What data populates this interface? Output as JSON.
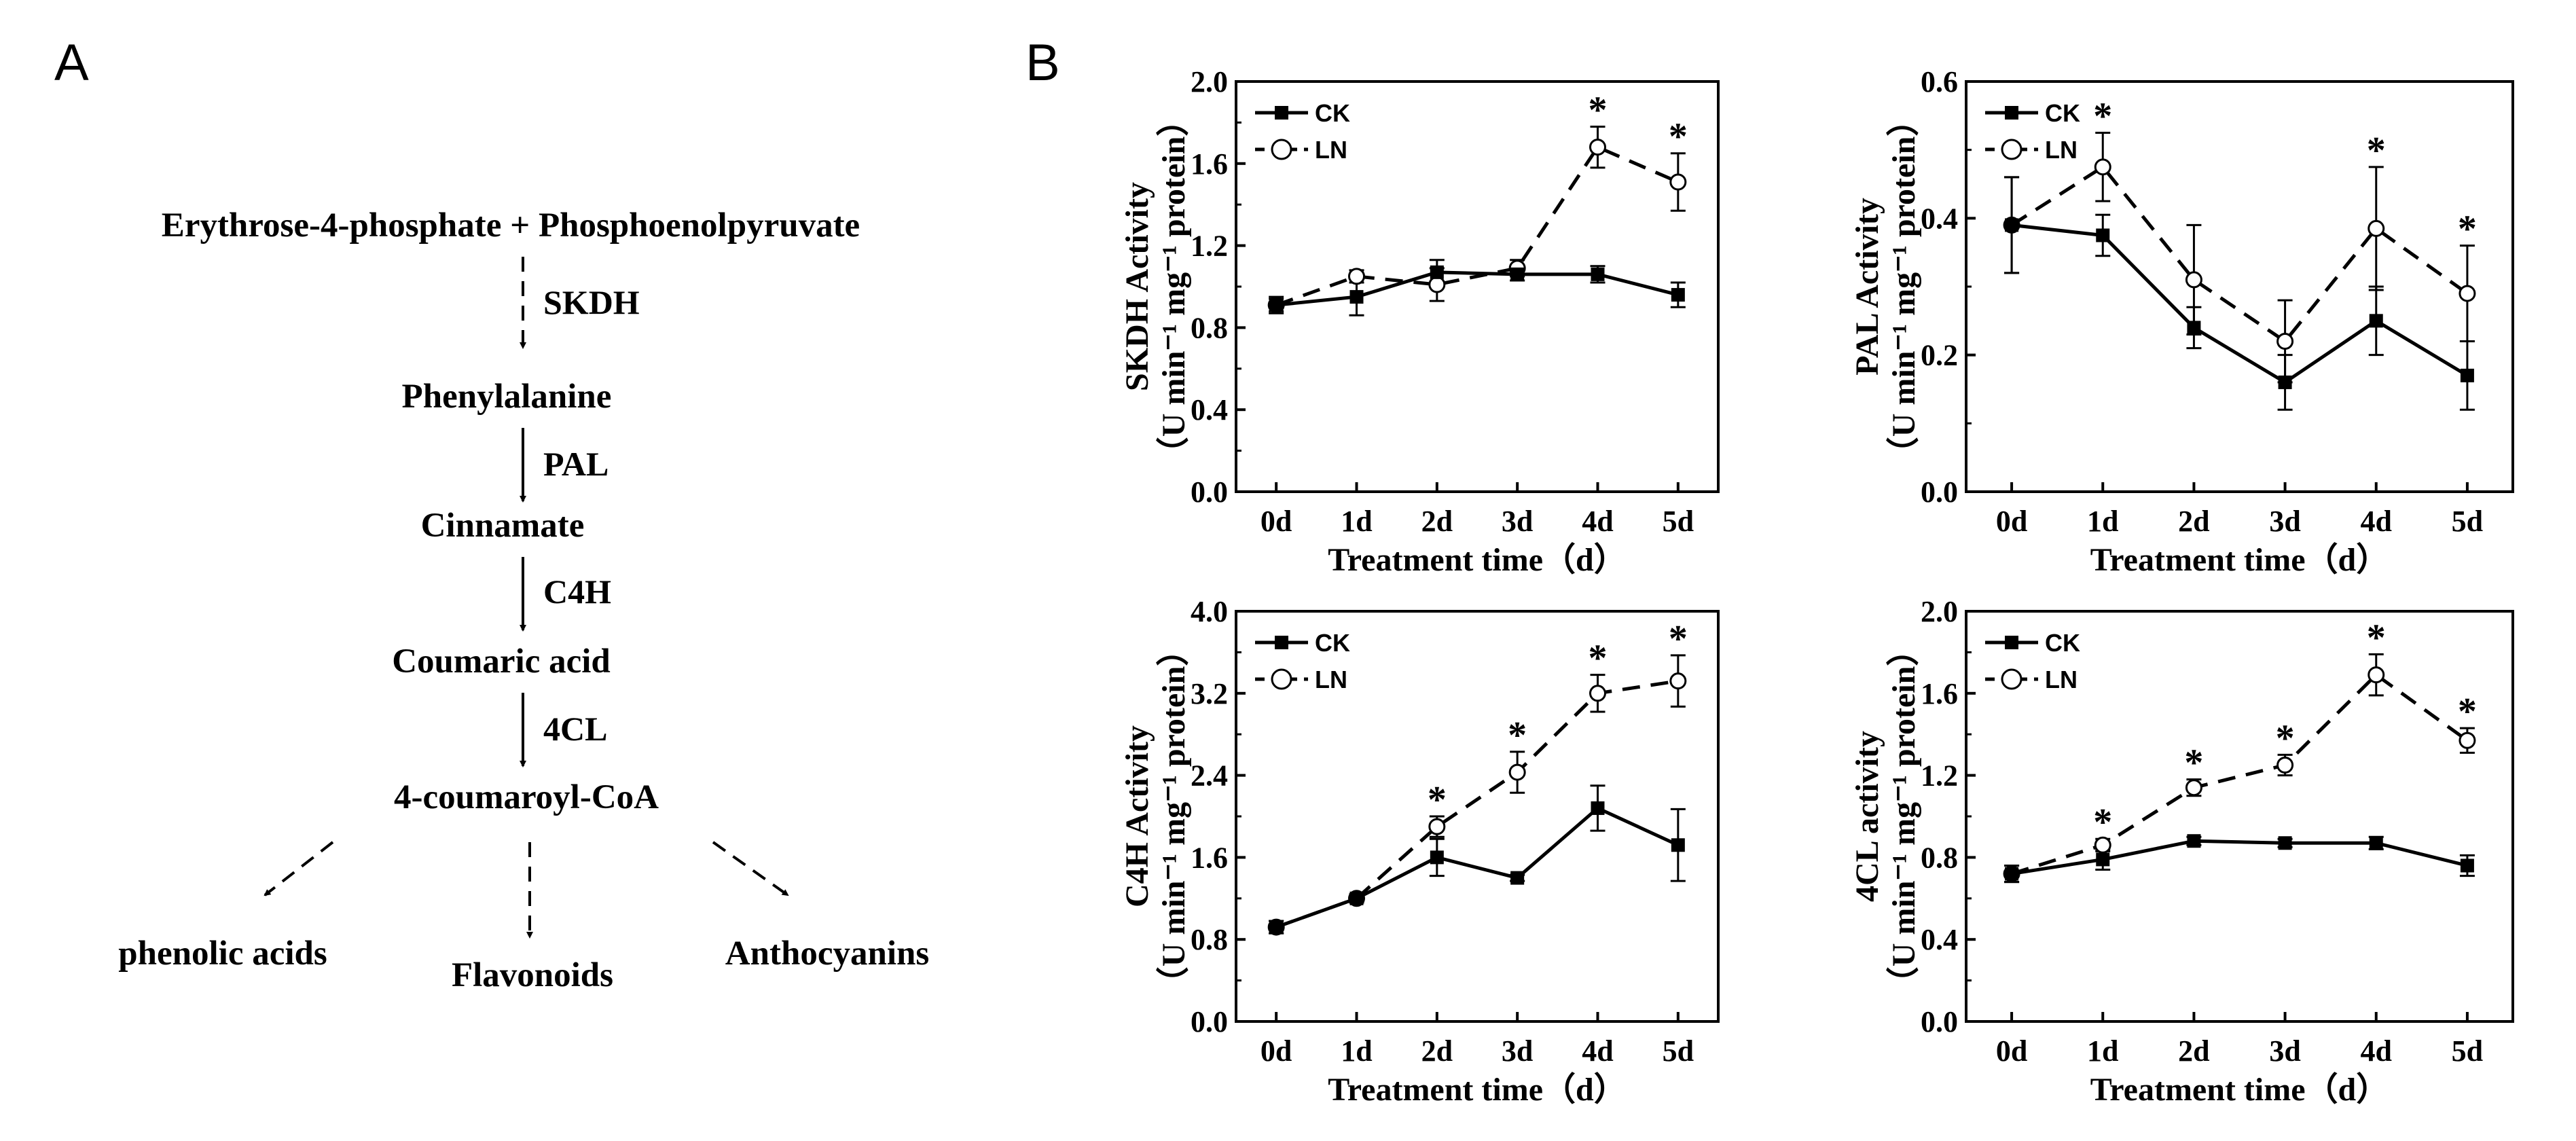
{
  "panel_a": {
    "label": "A",
    "nodes": {
      "erythrose": "Erythrose-4-phosphate + Phosphoenolpyruvate",
      "phenylalanine": "Phenylalanine",
      "cinnamate": "Cinnamate",
      "coumaric": "Coumaric acid",
      "coumaroyl": "4-coumaroyl-CoA",
      "phenolic": "phenolic acids",
      "flavonoids": "Flavonoids",
      "anthocyanins": "Anthocyanins"
    },
    "enzymes": {
      "skdh": "SKDH",
      "pal": "PAL",
      "c4h": "C4H",
      "cl": "4CL"
    }
  },
  "panel_b": {
    "label": "B"
  },
  "colors": {
    "ink": "#000000",
    "background": "#ffffff"
  },
  "chart_data": [
    {
      "type": "line",
      "id": "skdh",
      "categories": [
        "0d",
        "1d",
        "2d",
        "3d",
        "4d",
        "5d"
      ],
      "xlabel": "Treatment time（d）",
      "ylabel_top": "SKDH Activity",
      "ylabel_bottom": "（U min⁻¹ mg⁻¹ protein）",
      "ylim": [
        0.0,
        2.0
      ],
      "yticks": [
        "0.0",
        "0.4",
        "0.8",
        "1.2",
        "1.6",
        "2.0"
      ],
      "legend": [
        "CK",
        "LN"
      ],
      "series": [
        {
          "name": "CK",
          "values": [
            0.91,
            0.95,
            1.07,
            1.06,
            1.06,
            0.96
          ],
          "errors": [
            0.03,
            0.09,
            0.06,
            0.03,
            0.04,
            0.06
          ]
        },
        {
          "name": "LN",
          "values": [
            0.91,
            1.05,
            1.01,
            1.09,
            1.68,
            1.51
          ],
          "errors": [
            0.04,
            0.03,
            0.08,
            0.04,
            0.1,
            0.14
          ]
        }
      ],
      "significance": [
        {
          "category": "4d",
          "label": "*"
        },
        {
          "category": "5d",
          "label": "*"
        }
      ]
    },
    {
      "type": "line",
      "id": "pal",
      "categories": [
        "0d",
        "1d",
        "2d",
        "3d",
        "4d",
        "5d"
      ],
      "xlabel": "Treatment time（d）",
      "ylabel_top": "PAL Activity",
      "ylabel_bottom": "（U min⁻¹ mg⁻¹ protein）",
      "ylim": [
        0.0,
        0.6
      ],
      "yticks": [
        "0.0",
        "0.2",
        "0.4",
        "0.6"
      ],
      "legend": [
        "CK",
        "LN"
      ],
      "series": [
        {
          "name": "CK",
          "values": [
            0.39,
            0.375,
            0.24,
            0.16,
            0.25,
            0.17
          ],
          "errors": [
            0.07,
            0.03,
            0.03,
            0.04,
            0.05,
            0.05
          ]
        },
        {
          "name": "LN",
          "values": [
            0.39,
            0.475,
            0.31,
            0.22,
            0.385,
            0.29
          ],
          "errors": [
            0.07,
            0.05,
            0.08,
            0.06,
            0.09,
            0.07
          ]
        }
      ],
      "significance": [
        {
          "category": "1d",
          "label": "*"
        },
        {
          "category": "4d",
          "label": "*"
        },
        {
          "category": "5d",
          "label": "*"
        }
      ]
    },
    {
      "type": "line",
      "id": "c4h",
      "categories": [
        "0d",
        "1d",
        "2d",
        "3d",
        "4d",
        "5d"
      ],
      "xlabel": "Treatment time（d）",
      "ylabel_top": "C4H Activity",
      "ylabel_bottom": "（U min⁻¹ mg⁻¹ protein）",
      "ylim": [
        0.0,
        4.0
      ],
      "yticks": [
        "0.0",
        "0.8",
        "1.6",
        "2.4",
        "3.2",
        "4.0"
      ],
      "legend": [
        "CK",
        "LN"
      ],
      "series": [
        {
          "name": "CK",
          "values": [
            0.92,
            1.2,
            1.6,
            1.4,
            2.08,
            1.72
          ],
          "errors": [
            0.06,
            0.04,
            0.18,
            0.03,
            0.22,
            0.35
          ]
        },
        {
          "name": "LN",
          "values": [
            0.92,
            1.2,
            1.9,
            2.43,
            3.2,
            3.32
          ],
          "errors": [
            0.06,
            0.04,
            0.1,
            0.2,
            0.18,
            0.25
          ]
        }
      ],
      "significance": [
        {
          "category": "2d",
          "label": "*"
        },
        {
          "category": "3d",
          "label": "*"
        },
        {
          "category": "4d",
          "label": "*"
        },
        {
          "category": "5d",
          "label": "*"
        }
      ]
    },
    {
      "type": "line",
      "id": "4cl",
      "categories": [
        "0d",
        "1d",
        "2d",
        "3d",
        "4d",
        "5d"
      ],
      "xlabel": "Treatment time（d）",
      "ylabel_top": "4CL activity",
      "ylabel_bottom": "（U min⁻¹ mg⁻¹ protein）",
      "ylim": [
        0.0,
        2.0
      ],
      "yticks": [
        "0.0",
        "0.4",
        "0.8",
        "1.2",
        "1.6",
        "2.0"
      ],
      "legend": [
        "CK",
        "LN"
      ],
      "series": [
        {
          "name": "CK",
          "values": [
            0.72,
            0.79,
            0.88,
            0.87,
            0.87,
            0.76
          ],
          "errors": [
            0.04,
            0.05,
            0.02,
            0.02,
            0.03,
            0.05
          ]
        },
        {
          "name": "LN",
          "values": [
            0.72,
            0.86,
            1.14,
            1.25,
            1.69,
            1.37
          ],
          "errors": [
            0.04,
            0.03,
            0.04,
            0.05,
            0.1,
            0.06
          ]
        }
      ],
      "significance": [
        {
          "category": "1d",
          "label": "*"
        },
        {
          "category": "2d",
          "label": "*"
        },
        {
          "category": "3d",
          "label": "*"
        },
        {
          "category": "4d",
          "label": "*"
        },
        {
          "category": "5d",
          "label": "*"
        }
      ]
    }
  ]
}
